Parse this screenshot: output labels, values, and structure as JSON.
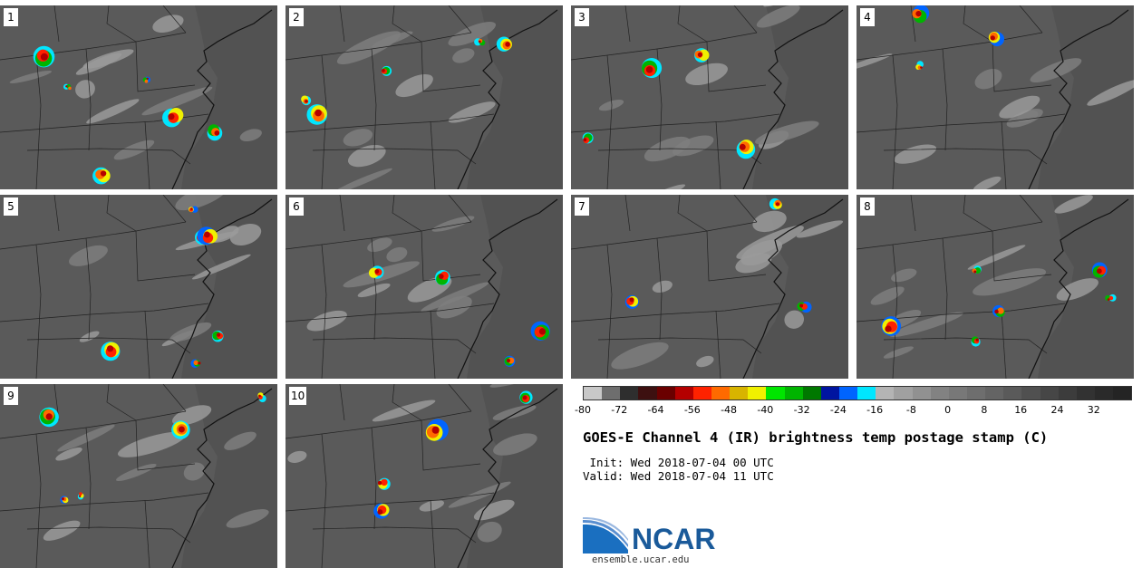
{
  "panels": [
    {
      "label": "1"
    },
    {
      "label": "2"
    },
    {
      "label": "3"
    },
    {
      "label": "4"
    },
    {
      "label": "5"
    },
    {
      "label": "6"
    },
    {
      "label": "7"
    },
    {
      "label": "8"
    },
    {
      "label": "9"
    },
    {
      "label": "10"
    }
  ],
  "colorbar": {
    "colors": [
      "#c8c8c8",
      "#6e6e6e",
      "#2e2e2e",
      "#3d1010",
      "#6a0000",
      "#b40000",
      "#ff2200",
      "#ff6a00",
      "#d8b400",
      "#f0f000",
      "#00e600",
      "#00b400",
      "#007800",
      "#0014a0",
      "#0064ff",
      "#00e6ff",
      "#b4b4b4",
      "#a0a0a0",
      "#919191",
      "#828282",
      "#787878",
      "#6e6e6e",
      "#646464",
      "#5a5a5a",
      "#505050",
      "#464646",
      "#3c3c3c",
      "#323232",
      "#2a2a2a",
      "#242424"
    ],
    "min": -80,
    "max": 40,
    "ticks": [
      "-80",
      "-72",
      "-64",
      "-56",
      "-48",
      "-40",
      "-32",
      "-24",
      "-16",
      "-8",
      "0",
      "8",
      "16",
      "24",
      "32"
    ]
  },
  "title": "GOES-E Channel 4 (IR) brightness temp postage stamp (C)",
  "init_line": " Init: Wed 2018-07-04 00 UTC",
  "valid_line": "Valid: Wed 2018-07-04 11 UTC",
  "logo": {
    "name": "NCAR",
    "url": "ensemble.ucar.edu"
  }
}
